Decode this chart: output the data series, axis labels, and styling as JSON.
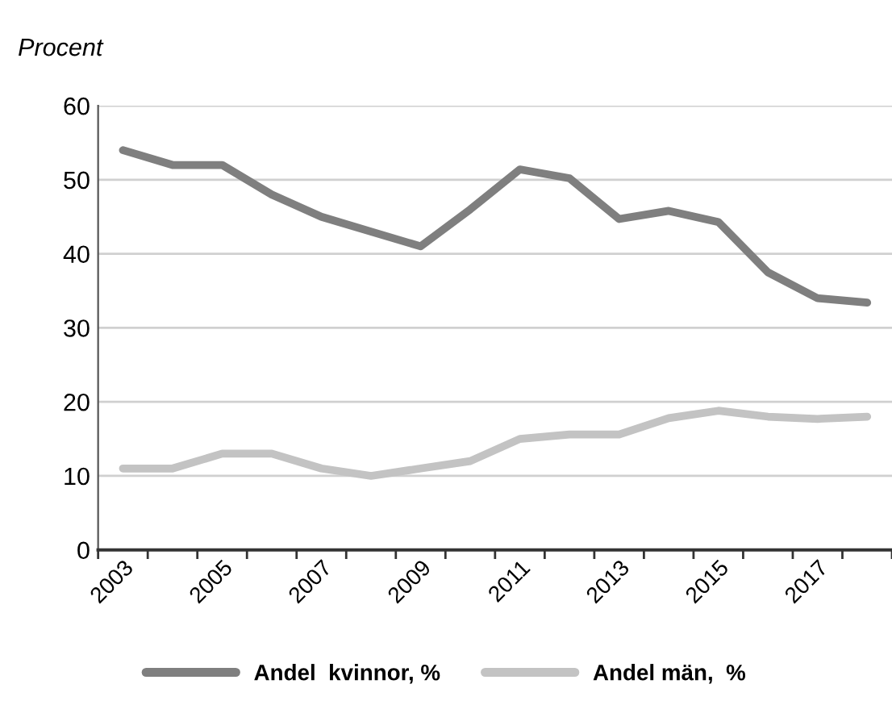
{
  "chart_data": {
    "type": "line",
    "ylabel": "Procent",
    "categories": [
      "2003",
      null,
      "2005",
      null,
      "2007",
      null,
      "2009",
      null,
      "2011",
      null,
      "2013",
      null,
      "2015",
      null,
      "2017",
      null
    ],
    "series": [
      {
        "name": "Andel  kvinnor, %",
        "color": "#7f7f7f",
        "values": [
          54,
          52,
          52,
          48,
          45,
          43,
          41,
          46,
          51.4,
          50.2,
          44.7,
          45.8,
          44.3,
          37.5,
          34,
          33.4
        ]
      },
      {
        "name": "Andel män,  %",
        "color": "#c3c3c3",
        "values": [
          11,
          11,
          13,
          13,
          11,
          10,
          11,
          12,
          15,
          15.6,
          15.6,
          17.8,
          18.8,
          18,
          17.7,
          18
        ]
      }
    ],
    "ylim": [
      0,
      60
    ],
    "yticks": [
      0,
      10,
      20,
      30,
      40,
      50,
      60
    ],
    "grid": "y",
    "legend": "bottom",
    "marker": "none",
    "line_style": "solid"
  }
}
